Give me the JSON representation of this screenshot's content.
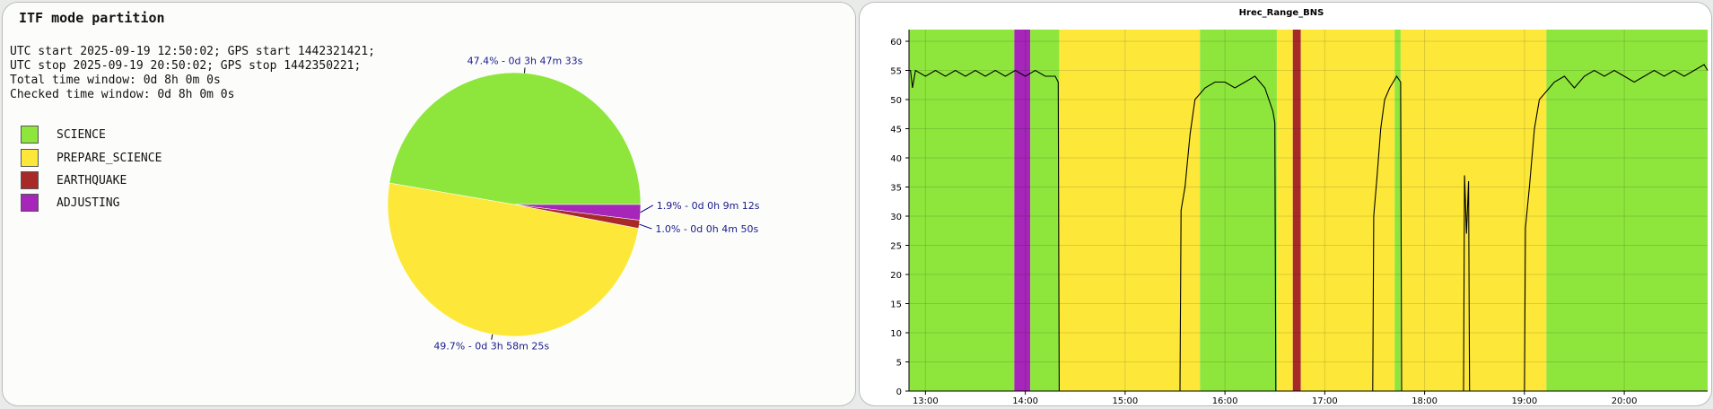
{
  "left": {
    "title": "ITF mode partition",
    "info_lines": [
      "UTC start 2025-09-19 12:50:02; GPS start 1442321421;",
      "UTC stop 2025-09-19 20:50:02; GPS stop 1442350221;",
      "Total time window: 0d 8h 0m 0s",
      "Checked time window: 0d 8h 0m 0s"
    ]
  },
  "chart_data": [
    {
      "type": "pie",
      "title": "ITF mode partition",
      "slices": [
        {
          "label": "SCIENCE",
          "percent": 47.4,
          "duration": "0d 3h 47m 33s",
          "slice_label": "47.4% - 0d 3h 47m 33s",
          "color": "#8ee63c"
        },
        {
          "label": "PREPARE_SCIENCE",
          "percent": 49.7,
          "duration": "0d 3h 58m 25s",
          "slice_label": "49.7% - 0d 3h 58m 25s",
          "color": "#fde83a"
        },
        {
          "label": "EARTHQUAKE",
          "percent": 1.0,
          "duration": "0d 0h 4m 50s",
          "slice_label": "1.0% - 0d 0h 4m 50s",
          "color": "#a82a28"
        },
        {
          "label": "ADJUSTING",
          "percent": 1.9,
          "duration": "0d 0h 9m 12s",
          "slice_label": "1.9% - 0d 0h 9m 12s",
          "color": "#a526b8"
        }
      ],
      "legend": [
        "SCIENCE",
        "PREPARE_SCIENCE",
        "EARTHQUAKE",
        "ADJUSTING"
      ],
      "legend_position": "left"
    },
    {
      "type": "line",
      "title": "Hrec_Range_BNS",
      "xlim": [
        12.835,
        20.835
      ],
      "ylim": [
        0,
        62
      ],
      "x_ticks": [
        "13:00",
        "14:00",
        "15:00",
        "16:00",
        "17:00",
        "18:00",
        "19:00",
        "20:00"
      ],
      "x_tick_values": [
        13,
        14,
        15,
        16,
        17,
        18,
        19,
        20
      ],
      "y_ticks": [
        0,
        5,
        10,
        15,
        20,
        25,
        30,
        35,
        40,
        45,
        50,
        55,
        60
      ],
      "grid": true,
      "background_bands": [
        {
          "mode": "SCIENCE",
          "start": 12.835,
          "end": 13.89,
          "color": "#8ee63c"
        },
        {
          "mode": "ADJUSTING",
          "start": 13.89,
          "end": 14.05,
          "color": "#a526b8"
        },
        {
          "mode": "SCIENCE",
          "start": 14.05,
          "end": 14.34,
          "color": "#8ee63c"
        },
        {
          "mode": "PREPARE_SCIENCE",
          "start": 14.34,
          "end": 15.75,
          "color": "#fde83a"
        },
        {
          "mode": "SCIENCE",
          "start": 15.75,
          "end": 16.52,
          "color": "#8ee63c"
        },
        {
          "mode": "PREPARE_SCIENCE",
          "start": 16.52,
          "end": 16.68,
          "color": "#fde83a"
        },
        {
          "mode": "EARTHQUAKE",
          "start": 16.68,
          "end": 16.76,
          "color": "#a82a28"
        },
        {
          "mode": "PREPARE_SCIENCE",
          "start": 16.76,
          "end": 17.7,
          "color": "#fde83a"
        },
        {
          "mode": "SCIENCE",
          "start": 17.7,
          "end": 17.76,
          "color": "#8ee63c"
        },
        {
          "mode": "PREPARE_SCIENCE",
          "start": 17.76,
          "end": 19.22,
          "color": "#fde83a"
        },
        {
          "mode": "SCIENCE",
          "start": 19.22,
          "end": 20.835,
          "color": "#8ee63c"
        }
      ],
      "series": [
        {
          "color": "#000000",
          "points": [
            [
              12.835,
              55
            ],
            [
              12.85,
              55
            ],
            [
              12.87,
              52
            ],
            [
              12.9,
              55
            ],
            [
              13.0,
              54
            ],
            [
              13.1,
              55
            ],
            [
              13.2,
              54
            ],
            [
              13.3,
              55
            ],
            [
              13.4,
              54
            ],
            [
              13.5,
              55
            ],
            [
              13.6,
              54
            ],
            [
              13.7,
              55
            ],
            [
              13.8,
              54
            ],
            [
              13.9,
              55
            ],
            [
              14.0,
              54
            ],
            [
              14.1,
              55
            ],
            [
              14.2,
              54
            ],
            [
              14.3,
              54
            ],
            [
              14.33,
              53
            ],
            [
              14.34,
              0
            ],
            [
              15.55,
              0
            ],
            [
              15.56,
              31
            ],
            [
              15.6,
              35
            ],
            [
              15.65,
              44
            ],
            [
              15.7,
              50
            ],
            [
              15.8,
              52
            ],
            [
              15.9,
              53
            ],
            [
              16.0,
              53
            ],
            [
              16.1,
              52
            ],
            [
              16.2,
              53
            ],
            [
              16.3,
              54
            ],
            [
              16.4,
              52
            ],
            [
              16.48,
              48
            ],
            [
              16.5,
              46
            ],
            [
              16.51,
              0
            ],
            [
              17.48,
              0
            ],
            [
              17.49,
              30
            ],
            [
              17.52,
              36
            ],
            [
              17.56,
              45
            ],
            [
              17.6,
              50
            ],
            [
              17.65,
              52
            ],
            [
              17.72,
              54
            ],
            [
              17.76,
              53
            ],
            [
              17.77,
              0
            ],
            [
              18.39,
              0
            ],
            [
              18.4,
              37
            ],
            [
              18.42,
              27
            ],
            [
              18.44,
              36
            ],
            [
              18.45,
              0
            ],
            [
              19.0,
              0
            ],
            [
              19.01,
              28
            ],
            [
              19.05,
              35
            ],
            [
              19.1,
              45
            ],
            [
              19.15,
              50
            ],
            [
              19.2,
              51
            ],
            [
              19.3,
              53
            ],
            [
              19.4,
              54
            ],
            [
              19.5,
              52
            ],
            [
              19.6,
              54
            ],
            [
              19.7,
              55
            ],
            [
              19.8,
              54
            ],
            [
              19.9,
              55
            ],
            [
              20.0,
              54
            ],
            [
              20.1,
              53
            ],
            [
              20.2,
              54
            ],
            [
              20.3,
              55
            ],
            [
              20.4,
              54
            ],
            [
              20.5,
              55
            ],
            [
              20.6,
              54
            ],
            [
              20.7,
              55
            ],
            [
              20.8,
              56
            ],
            [
              20.835,
              55
            ]
          ]
        }
      ]
    }
  ]
}
